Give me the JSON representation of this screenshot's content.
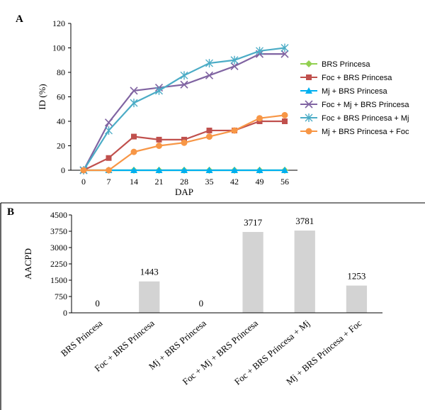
{
  "chart_data": [
    {
      "panel_label": "A",
      "type": "line",
      "xlabel": "DAP",
      "ylabel": "ID (%)",
      "x": [
        0,
        7,
        14,
        21,
        28,
        35,
        42,
        49,
        56
      ],
      "xlim": [
        0,
        56
      ],
      "ylim": [
        0,
        120
      ],
      "yticks": [
        0,
        20,
        40,
        60,
        80,
        100,
        120
      ],
      "grid": false,
      "legend_position": "right",
      "series": [
        {
          "name": "BRS Princesa",
          "color": "#92d050",
          "marker": "diamond",
          "values": [
            0,
            0,
            0,
            0,
            0,
            0,
            0,
            0,
            0
          ]
        },
        {
          "name": "Foc + BRS Princesa",
          "color": "#c0504d",
          "marker": "square",
          "values": [
            0,
            10,
            27.5,
            25,
            25,
            32.5,
            32.5,
            40,
            40
          ]
        },
        {
          "name": "Mj + BRS Princesa",
          "color": "#00b0f0",
          "marker": "triangle",
          "values": [
            0,
            0,
            0,
            0,
            0,
            0,
            0,
            0,
            0
          ]
        },
        {
          "name": "Foc + Mj + BRS Princesa",
          "color": "#8064a2",
          "marker": "x",
          "values": [
            0,
            39,
            65,
            67.5,
            70,
            77.5,
            85,
            95,
            95
          ]
        },
        {
          "name": "Foc + BRS Princesa + Mj",
          "color": "#4bacc6",
          "marker": "star",
          "values": [
            0,
            32.5,
            55,
            65,
            77.5,
            87.5,
            90,
            97.5,
            100
          ]
        },
        {
          "name": "Mj + BRS Princesa + Foc",
          "color": "#f79646",
          "marker": "circle",
          "values": [
            0,
            0,
            15,
            20,
            22.5,
            27.5,
            32.5,
            42.5,
            45
          ]
        }
      ]
    },
    {
      "panel_label": "B",
      "type": "bar",
      "ylabel": "AACPD",
      "categories": [
        "BRS Princesa",
        "Foc + BRS Princesa",
        "Mj + BRS Princesa",
        "Foc + Mj + BRS Princesa",
        "Foc + BRS Princesa + Mj",
        "Mj + BRS Princesa + Foc"
      ],
      "values": [
        0,
        1443,
        0,
        3717,
        3781,
        1253
      ],
      "data_labels": [
        "0",
        "1443",
        "0",
        "3717",
        "3781",
        "1253"
      ],
      "ylim": [
        0,
        4500
      ],
      "yticks": [
        0,
        750,
        1500,
        2250,
        3000,
        3750,
        4500
      ],
      "bar_color": "#d3d3d3",
      "grid": false
    }
  ]
}
